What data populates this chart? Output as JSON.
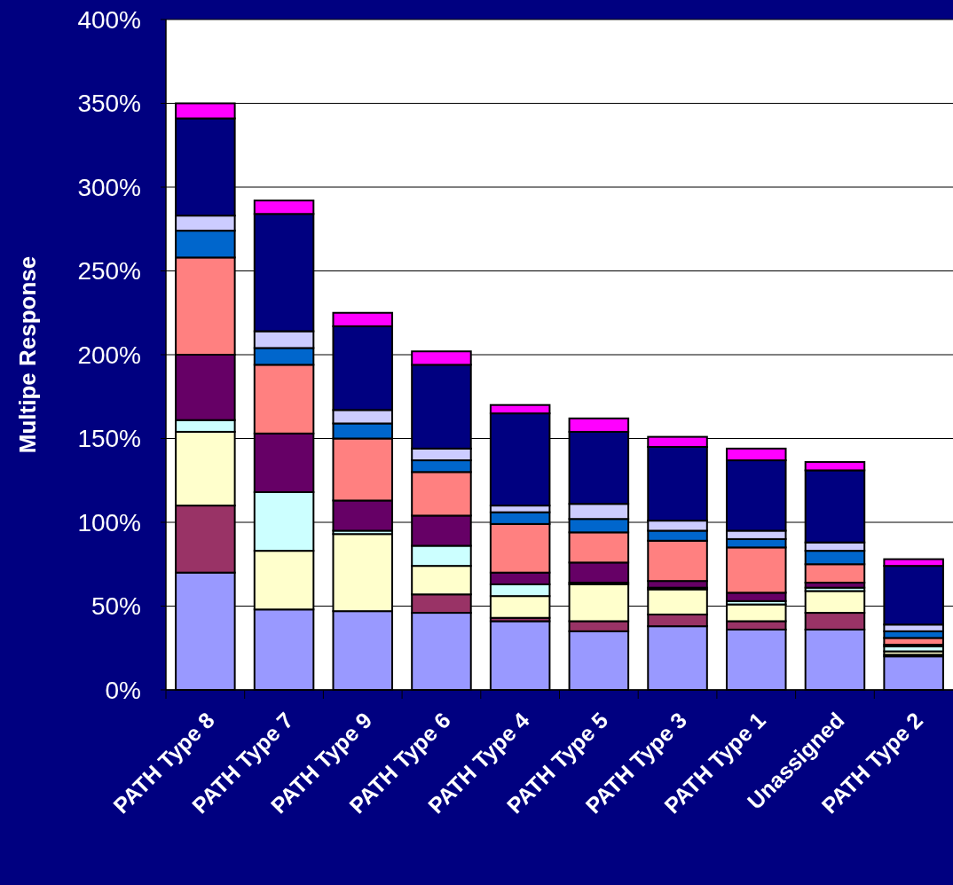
{
  "chart_data": {
    "type": "bar",
    "stacked": true,
    "ylabel": "Multipe Response",
    "categories": [
      "PATH Type 8",
      "PATH Type 7",
      "PATH Type 9",
      "PATH Type 6",
      "PATH Type 4",
      "PATH Type 5",
      "PATH Type 3",
      "PATH Type 1",
      "Unassigned",
      "PATH Type 2"
    ],
    "series": [
      {
        "color": "#9999ff",
        "values": [
          70,
          48,
          47,
          46,
          41,
          35,
          38,
          36,
          36,
          20
        ]
      },
      {
        "color": "#993366",
        "values": [
          40,
          0,
          0,
          11,
          2,
          6,
          7,
          5,
          10,
          1
        ]
      },
      {
        "color": "#ffffcc",
        "values": [
          44,
          35,
          46,
          17,
          13,
          22,
          15,
          10,
          13,
          2
        ]
      },
      {
        "color": "#ccffff",
        "values": [
          7,
          35,
          2,
          12,
          7,
          1,
          1,
          2,
          2,
          3
        ]
      },
      {
        "color": "#660066",
        "values": [
          39,
          35,
          18,
          18,
          7,
          12,
          4,
          5,
          3,
          1
        ]
      },
      {
        "color": "#ff8080",
        "values": [
          58,
          41,
          37,
          26,
          29,
          18,
          24,
          27,
          11,
          4
        ]
      },
      {
        "color": "#0066cc",
        "values": [
          16,
          10,
          9,
          7,
          7,
          8,
          6,
          5,
          8,
          4
        ]
      },
      {
        "color": "#ccccff",
        "values": [
          9,
          10,
          8,
          7,
          4,
          9,
          6,
          5,
          5,
          4
        ]
      },
      {
        "color": "#000080",
        "values": [
          58,
          70,
          50,
          50,
          55,
          43,
          44,
          42,
          43,
          35
        ]
      },
      {
        "color": "#ff00ff",
        "values": [
          9,
          8,
          8,
          8,
          5,
          8,
          6,
          7,
          5,
          4
        ]
      }
    ],
    "ylim": [
      0,
      400
    ],
    "yticks": [
      {
        "value": 0,
        "label": "0%"
      },
      {
        "value": 50,
        "label": "50%"
      },
      {
        "value": 100,
        "label": "100%"
      },
      {
        "value": 150,
        "label": "150%"
      },
      {
        "value": 200,
        "label": "200%"
      },
      {
        "value": 250,
        "label": "250%"
      },
      {
        "value": 300,
        "label": "300%"
      },
      {
        "value": 350,
        "label": "350%"
      },
      {
        "value": 400,
        "label": "400%"
      }
    ],
    "grid": "y"
  }
}
